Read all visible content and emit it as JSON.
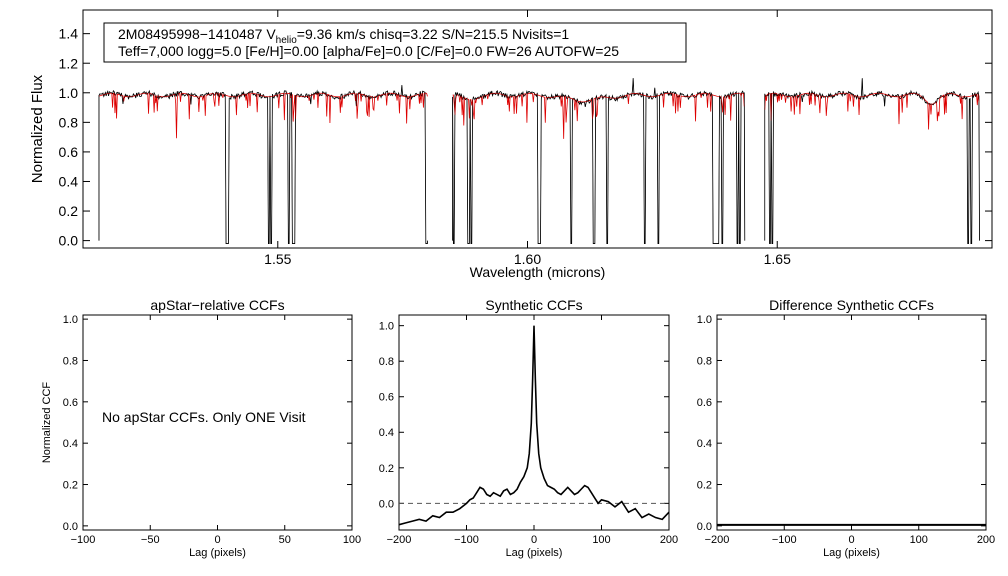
{
  "chart_data": [
    {
      "type": "line",
      "id": "spectrum",
      "xlabel": "Wavelength (microns)",
      "ylabel": "Normalized Flux",
      "xlim": [
        1.511,
        1.693
      ],
      "ylim": [
        -0.05,
        1.56
      ],
      "xticks": [
        1.55,
        1.6,
        1.65
      ],
      "xtick_labels": [
        "1.55",
        "1.60",
        "1.65"
      ],
      "yticks": [
        0.0,
        0.2,
        0.4,
        0.6,
        0.8,
        1.0,
        1.2,
        1.4
      ],
      "ytick_labels": [
        "0.0",
        "0.2",
        "0.4",
        "0.6",
        "0.8",
        "1.0",
        "1.2",
        "1.4"
      ],
      "info_line1": {
        "star": "2M08495998−1410487",
        "v_label": "V",
        "v_sub": "helio",
        "v_value": "=9.36 km/s  chisq=3.22  S/N=215.5  Nvisits=1"
      },
      "info_line2": "Teff=7,000 logg=5.0 [Fe/H]=0.00 [alpha/Fe]=0.0 [C/Fe]=0.0 FW=26 AUTOFW=25",
      "chips": [
        [
          1.5142,
          1.58
        ],
        [
          1.585,
          1.6435
        ],
        [
          1.6475,
          1.6905
        ]
      ],
      "series": [
        {
          "role": "observed",
          "color": "#000000"
        },
        {
          "role": "model",
          "color": "#dd0000"
        }
      ],
      "bad_pixel_drops": [
        1.514,
        1.5398,
        1.54,
        1.5482,
        1.5487,
        1.5522,
        1.553,
        1.5533,
        1.5798,
        1.5852,
        1.5882,
        1.5888,
        1.6022,
        1.6025,
        1.6087,
        1.6133,
        1.616,
        1.6235,
        1.6262,
        1.6373,
        1.6378,
        1.6382,
        1.639,
        1.642,
        1.6425,
        1.6485,
        1.649,
        1.6882,
        1.6888
      ]
    },
    {
      "type": "line",
      "id": "apstar-ccf",
      "title": "apStar−relative CCFs",
      "xlabel": "Lag (pixels)",
      "ylabel": "Normalized CCF",
      "xlim": [
        -100,
        100
      ],
      "ylim": [
        -0.02,
        1.02
      ],
      "xticks": [
        -100,
        -50,
        0,
        50,
        100
      ],
      "xtick_labels": [
        "−100",
        "−50",
        "0",
        "50",
        "100"
      ],
      "yticks": [
        0.0,
        0.2,
        0.4,
        0.6,
        0.8,
        1.0
      ],
      "ytick_labels": [
        "0.0",
        "0.2",
        "0.4",
        "0.6",
        "0.8",
        "1.0"
      ],
      "annotation": "No apStar CCFs.  Only ONE Visit",
      "series": []
    },
    {
      "type": "line",
      "id": "synthetic-ccf",
      "title": "Synthetic CCFs",
      "xlabel": "Lag (pixels)",
      "xlim": [
        -200,
        200
      ],
      "ylim": [
        -0.15,
        1.06
      ],
      "xticks": [
        -200,
        -100,
        0,
        100,
        200
      ],
      "xtick_labels": [
        "−200",
        "−100",
        "0",
        "100",
        "200"
      ],
      "yticks": [
        0.0,
        0.2,
        0.4,
        0.6,
        0.8,
        1.0
      ],
      "ytick_labels": [
        "0.0",
        "0.2",
        "0.4",
        "0.6",
        "0.8",
        "1.0"
      ],
      "reference_line": 0.0,
      "series": [
        {
          "color": "#000000",
          "x": [
            -200,
            -190,
            -180,
            -170,
            -160,
            -150,
            -140,
            -130,
            -120,
            -110,
            -100,
            -95,
            -90,
            -85,
            -80,
            -75,
            -70,
            -65,
            -60,
            -55,
            -50,
            -45,
            -40,
            -35,
            -30,
            -25,
            -20,
            -15,
            -10,
            -7,
            -4,
            -2,
            0,
            2,
            4,
            7,
            10,
            15,
            20,
            25,
            30,
            35,
            40,
            45,
            50,
            55,
            60,
            65,
            70,
            75,
            80,
            85,
            90,
            95,
            100,
            110,
            120,
            130,
            140,
            150,
            160,
            170,
            180,
            190,
            200
          ],
          "y": [
            -0.12,
            -0.11,
            -0.1,
            -0.09,
            -0.1,
            -0.07,
            -0.08,
            -0.05,
            -0.05,
            -0.03,
            0.0,
            0.02,
            0.03,
            0.06,
            0.09,
            0.08,
            0.05,
            0.04,
            0.06,
            0.05,
            0.04,
            0.07,
            0.08,
            0.05,
            0.06,
            0.08,
            0.12,
            0.15,
            0.2,
            0.28,
            0.45,
            0.7,
            1.0,
            0.7,
            0.45,
            0.28,
            0.2,
            0.14,
            0.1,
            0.09,
            0.08,
            0.06,
            0.05,
            0.07,
            0.09,
            0.07,
            0.05,
            0.06,
            0.08,
            0.1,
            0.09,
            0.06,
            0.03,
            0.0,
            0.02,
            0.01,
            -0.02,
            0.01,
            -0.05,
            -0.03,
            -0.08,
            -0.06,
            -0.08,
            -0.09,
            -0.05
          ]
        }
      ]
    },
    {
      "type": "line",
      "id": "difference-ccf",
      "title": "Difference Synthetic CCFs",
      "xlabel": "Lag (pixels)",
      "xlim": [
        -200,
        200
      ],
      "ylim": [
        -0.02,
        1.02
      ],
      "xticks": [
        -200,
        -100,
        0,
        100,
        200
      ],
      "xtick_labels": [
        "−200",
        "−100",
        "0",
        "100",
        "200"
      ],
      "yticks": [
        0.0,
        0.2,
        0.4,
        0.6,
        0.8,
        1.0
      ],
      "ytick_labels": [
        "0.0",
        "0.2",
        "0.4",
        "0.6",
        "0.8",
        "1.0"
      ],
      "series": [
        {
          "color": "#000000",
          "x": [
            -200,
            200
          ],
          "y": [
            0.0,
            0.0
          ]
        }
      ]
    }
  ]
}
